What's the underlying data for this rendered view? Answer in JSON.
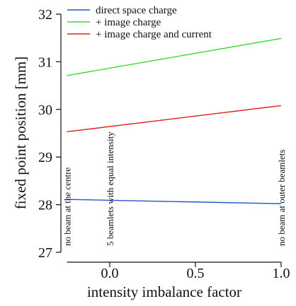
{
  "chart_data": {
    "type": "line",
    "title": "",
    "xlabel": "intensity imbalance factor",
    "ylabel": "fixed point position [mm]",
    "xlim": [
      -0.3,
      1.07
    ],
    "ylim": [
      27,
      32
    ],
    "x_ticks": [
      0.0,
      0.5,
      1.0
    ],
    "x_tick_labels": [
      "0.0",
      "0.5",
      "1.0"
    ],
    "y_ticks": [
      27,
      28,
      29,
      30,
      31,
      32
    ],
    "y_tick_labels": [
      "27",
      "28",
      "29",
      "30",
      "31",
      "32"
    ],
    "grid": false,
    "legend_position": "top-left",
    "series": [
      {
        "name": "direct space charge",
        "color": "#2255cc",
        "x": [
          -0.25,
          1.0
        ],
        "y": [
          28.11,
          28.02
        ]
      },
      {
        "name": "+ image charge",
        "color": "#33dd33",
        "x": [
          -0.25,
          1.0
        ],
        "y": [
          30.71,
          31.49
        ]
      },
      {
        "name": "+ image charge and current",
        "color": "#dd2222",
        "x": [
          -0.25,
          1.0
        ],
        "y": [
          29.53,
          30.08
        ]
      }
    ],
    "annotations": [
      {
        "text": "no beam at the centre",
        "x": -0.25
      },
      {
        "text": "5 beamlets with equal intensity",
        "x": 0.0
      },
      {
        "text": "no beam at outer beamlets",
        "x": 1.0
      }
    ]
  }
}
